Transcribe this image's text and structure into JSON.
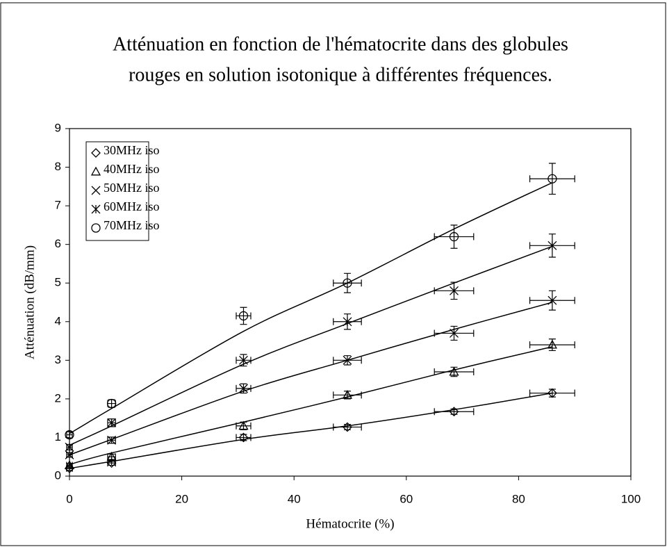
{
  "chart_data": {
    "type": "scatter",
    "title": [
      "Atténuation en fonction de l'hématocrite dans des globules",
      "rouges en solution isotonique à différentes fréquences."
    ],
    "xlabel": "Hématocrite (%)",
    "ylabel": "Atténuation (dB/mm)",
    "xlim": [
      0,
      100
    ],
    "xticks": [
      0,
      20,
      40,
      60,
      80,
      100
    ],
    "ylim": [
      0,
      9
    ],
    "yticks": [
      0,
      1,
      2,
      3,
      4,
      5,
      6,
      7,
      8,
      9
    ],
    "legend": "upper left",
    "x": [
      0,
      7.5,
      31,
      49.5,
      68.5,
      86
    ],
    "series": [
      {
        "name": "30MHz iso",
        "marker": "diamond",
        "color": "#000000",
        "values": [
          0.2,
          0.34,
          1.0,
          1.27,
          1.67,
          2.15
        ],
        "yerr": [
          0.05,
          0.06,
          0.08,
          0.07,
          0.07,
          0.1
        ],
        "xerr": [
          0.5,
          0.7,
          1.3,
          2.5,
          3.5,
          4
        ],
        "fit_values": [
          0.2,
          0.38,
          0.95,
          1.3,
          1.72,
          2.15
        ]
      },
      {
        "name": "40MHz iso",
        "marker": "triangle",
        "color": "#000000",
        "values": [
          0.28,
          0.5,
          1.3,
          2.1,
          2.7,
          3.4
        ],
        "yerr": [
          0.05,
          0.07,
          0.1,
          0.1,
          0.12,
          0.15
        ],
        "xerr": [
          0.5,
          0.7,
          1.3,
          2.5,
          3.5,
          4
        ],
        "fit_values": [
          0.3,
          0.6,
          1.4,
          2.05,
          2.75,
          3.35
        ]
      },
      {
        "name": "50MHz iso",
        "marker": "x",
        "color": "#000000",
        "values": [
          0.55,
          0.93,
          2.27,
          3.0,
          3.7,
          4.55
        ],
        "yerr": [
          0.06,
          0.08,
          0.12,
          0.12,
          0.18,
          0.25
        ],
        "xerr": [
          0.5,
          0.7,
          1.3,
          2.5,
          3.5,
          4
        ],
        "fit_values": [
          0.55,
          0.95,
          2.2,
          3.0,
          3.8,
          4.5
        ]
      },
      {
        "name": "60MHz iso",
        "marker": "asterisk",
        "color": "#000000",
        "values": [
          0.75,
          1.38,
          3.0,
          4.0,
          4.8,
          5.97
        ],
        "yerr": [
          0.07,
          0.1,
          0.15,
          0.2,
          0.22,
          0.3
        ],
        "xerr": [
          0.5,
          0.7,
          1.3,
          2.5,
          3.5,
          4
        ],
        "fit_values": [
          0.8,
          1.3,
          2.9,
          3.95,
          5.0,
          5.95
        ]
      },
      {
        "name": "70MHz iso",
        "marker": "circle",
        "color": "#000000",
        "values": [
          1.07,
          1.88,
          4.15,
          5.0,
          6.2,
          7.7
        ],
        "yerr": [
          0.08,
          0.1,
          0.22,
          0.25,
          0.3,
          0.4
        ],
        "xerr": [
          0.5,
          0.7,
          1.3,
          2.5,
          3.5,
          4
        ],
        "fit_values": [
          1.1,
          1.75,
          3.75,
          5.0,
          6.4,
          7.6
        ]
      }
    ]
  }
}
